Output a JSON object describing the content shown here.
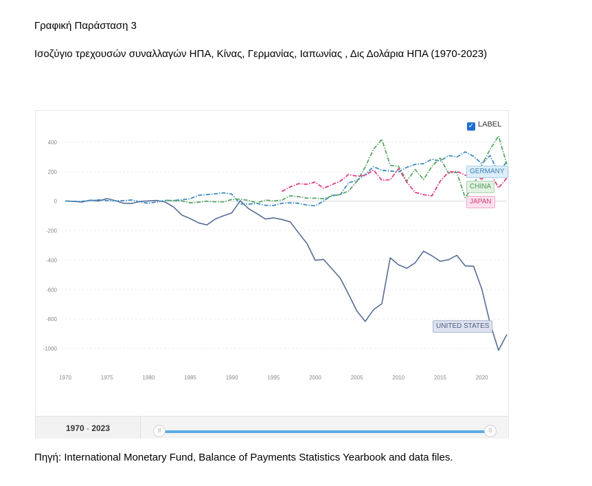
{
  "heading": "Γραφική Παράσταση 3",
  "subtitle": " Ισοζύγιο τρεχουσών συναλλαγών ΗΠΑ, Κίνας, Γερμανίας, Ιαπωνίας , Δις Δολάρια ΗΠΑ (1970-2023)",
  "source": "Πηγή: International Monetary Fund, Balance of Payments Statistics Yearbook and data files.",
  "label_toggle": {
    "text": "LABEL",
    "checked": true
  },
  "range": {
    "from": "1970",
    "separator": " - ",
    "to": "2023"
  },
  "slider_handle_glyph": "|||",
  "colors": {
    "UNITED STATES": "#566c94",
    "GERMANY": "#3b8cc4",
    "CHINA": "#5aa564",
    "JAPAN": "#e23c86"
  },
  "chart_data": {
    "type": "line",
    "title": "",
    "xlabel": "",
    "ylabel": "",
    "xlim": [
      1970,
      2023
    ],
    "ylim": [
      -1000,
      400
    ],
    "yticks": [
      400,
      200,
      0,
      -200,
      -400,
      -600,
      -800,
      -1000
    ],
    "xticks": [
      1970,
      1975,
      1980,
      1985,
      1990,
      1995,
      2000,
      2005,
      2010,
      2015,
      2020
    ],
    "grid": true,
    "series": [
      {
        "name": "UNITED STATES",
        "x": [
          1970,
          1971,
          1972,
          1973,
          1974,
          1975,
          1976,
          1977,
          1978,
          1979,
          1980,
          1981,
          1982,
          1983,
          1984,
          1985,
          1986,
          1987,
          1988,
          1989,
          1990,
          1991,
          1992,
          1993,
          1994,
          1995,
          1996,
          1997,
          1998,
          1999,
          2000,
          2001,
          2002,
          2003,
          2004,
          2005,
          2006,
          2007,
          2008,
          2009,
          2010,
          2011,
          2012,
          2013,
          2014,
          2015,
          2016,
          2017,
          2018,
          2019,
          2020,
          2021,
          2022,
          2023
        ],
        "values": [
          2,
          -1,
          -6,
          7,
          2,
          18,
          4,
          -14,
          -15,
          -1,
          2,
          5,
          -6,
          -39,
          -94,
          -118,
          -147,
          -161,
          -121,
          -99,
          -79,
          4,
          -51,
          -84,
          -121,
          -113,
          -124,
          -140,
          -215,
          -286,
          -401,
          -395,
          -458,
          -522,
          -631,
          -745,
          -816,
          -736,
          -696,
          -384,
          -432,
          -455,
          -418,
          -339,
          -370,
          -408,
          -397,
          -367,
          -439,
          -441,
          -597,
          -831,
          -1012,
          -905
        ]
      },
      {
        "name": "GERMANY",
        "x": [
          1970,
          1971,
          1972,
          1973,
          1974,
          1975,
          1976,
          1977,
          1978,
          1979,
          1980,
          1981,
          1982,
          1983,
          1984,
          1985,
          1986,
          1987,
          1988,
          1989,
          1990,
          1991,
          1992,
          1993,
          1994,
          1995,
          1996,
          1997,
          1998,
          1999,
          2000,
          2001,
          2002,
          2003,
          2004,
          2005,
          2006,
          2007,
          2008,
          2009,
          2010,
          2011,
          2012,
          2013,
          2014,
          2015,
          2016,
          2017,
          2018,
          2019,
          2020,
          2021,
          2022,
          2023
        ],
        "values": [
          1,
          -1,
          -1,
          5,
          10,
          4,
          4,
          4,
          9,
          -6,
          -14,
          -5,
          5,
          5,
          10,
          17,
          40,
          45,
          50,
          57,
          48,
          -18,
          -20,
          -15,
          -28,
          -29,
          -14,
          -11,
          -14,
          -26,
          -31,
          1,
          40,
          45,
          125,
          140,
          180,
          235,
          210,
          205,
          200,
          230,
          250,
          255,
          285,
          272,
          310,
          300,
          335,
          305,
          255,
          310,
          190,
          270
        ]
      },
      {
        "name": "CHINA",
        "x": [
          1982,
          1983,
          1984,
          1985,
          1986,
          1987,
          1988,
          1989,
          1990,
          1991,
          1992,
          1993,
          1994,
          1995,
          1996,
          1997,
          1998,
          1999,
          2000,
          2001,
          2002,
          2003,
          2004,
          2005,
          2006,
          2007,
          2008,
          2009,
          2010,
          2011,
          2012,
          2013,
          2014,
          2015,
          2016,
          2017,
          2018,
          2019,
          2020,
          2021,
          2022,
          2023
        ],
        "values": [
          6,
          4,
          2,
          -11,
          -7,
          0,
          -4,
          -4,
          12,
          13,
          6,
          -12,
          8,
          2,
          7,
          37,
          31,
          21,
          20,
          17,
          35,
          46,
          69,
          134,
          232,
          353,
          420,
          243,
          237,
          136,
          215,
          148,
          236,
          293,
          191,
          195,
          24,
          103,
          248,
          352,
          443,
          250
        ]
      },
      {
        "name": "JAPAN",
        "x": [
          1996,
          1997,
          1998,
          1999,
          2000,
          2001,
          2002,
          2003,
          2004,
          2005,
          2006,
          2007,
          2008,
          2009,
          2010,
          2011,
          2012,
          2013,
          2014,
          2015,
          2016,
          2017,
          2018,
          2019,
          2020,
          2021,
          2022,
          2023
        ],
        "values": [
          66,
          97,
          119,
          115,
          130,
          88,
          112,
          136,
          182,
          170,
          175,
          212,
          142,
          146,
          221,
          129,
          60,
          45,
          36,
          136,
          197,
          203,
          177,
          176,
          150,
          196,
          90,
          158
        ]
      }
    ]
  }
}
